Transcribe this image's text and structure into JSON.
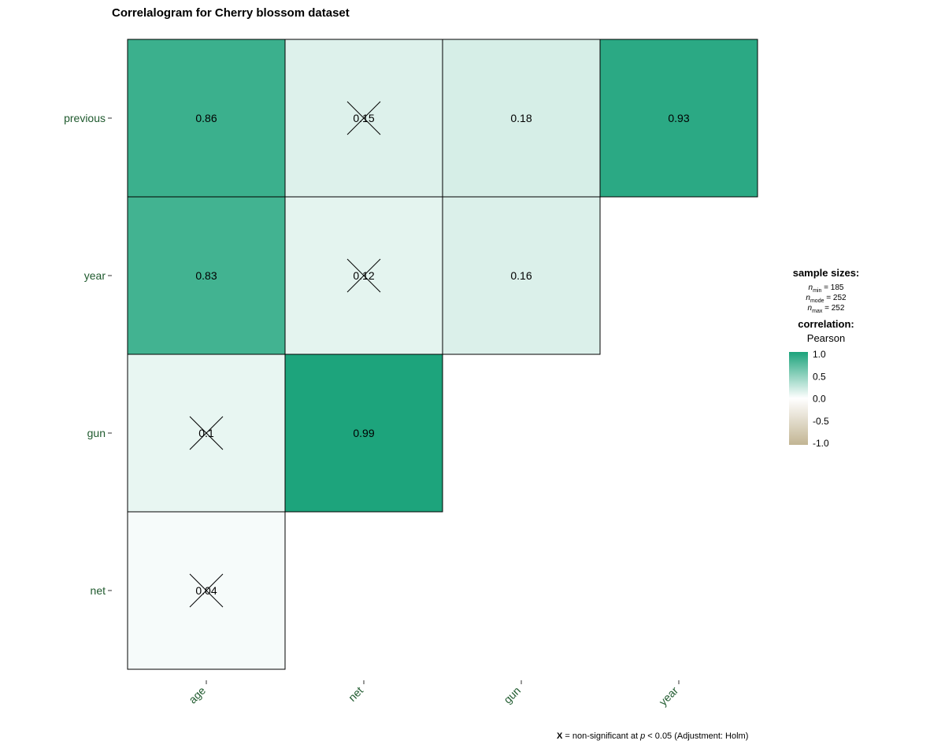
{
  "chart_data": {
    "type": "heatmap",
    "title": "Correlalogram for Cherry blossom dataset",
    "x_categories": [
      "age",
      "net",
      "gun",
      "year"
    ],
    "y_categories": [
      "previous",
      "year",
      "gun",
      "net"
    ],
    "cells": [
      {
        "x": "age",
        "y": "previous",
        "value": 0.86,
        "label": "0.86",
        "nonsignificant": false
      },
      {
        "x": "net",
        "y": "previous",
        "value": 0.15,
        "label": "0.15",
        "nonsignificant": true
      },
      {
        "x": "gun",
        "y": "previous",
        "value": 0.18,
        "label": "0.18",
        "nonsignificant": false
      },
      {
        "x": "year",
        "y": "previous",
        "value": 0.93,
        "label": "0.93",
        "nonsignificant": false
      },
      {
        "x": "age",
        "y": "year",
        "value": 0.83,
        "label": "0.83",
        "nonsignificant": false
      },
      {
        "x": "net",
        "y": "year",
        "value": 0.12,
        "label": "0.12",
        "nonsignificant": true
      },
      {
        "x": "gun",
        "y": "year",
        "value": 0.16,
        "label": "0.16",
        "nonsignificant": false
      },
      {
        "x": "age",
        "y": "gun",
        "value": 0.1,
        "label": "0.1",
        "nonsignificant": true
      },
      {
        "x": "net",
        "y": "gun",
        "value": 0.99,
        "label": "0.99",
        "nonsignificant": false
      },
      {
        "x": "age",
        "y": "net",
        "value": 0.04,
        "label": "0.04",
        "nonsignificant": true
      }
    ],
    "color_scale": {
      "low": "#c2b593",
      "mid": "#ffffff",
      "high": "#1ba37b",
      "min": -1.0,
      "max": 1.0
    },
    "legend": {
      "sample_sizes_title": "sample sizes:",
      "n_min": {
        "symbol": "n",
        "sub": "min",
        "rest": " = 185"
      },
      "n_mode": {
        "symbol": "n",
        "sub": "mode",
        "rest": " = 252"
      },
      "n_max": {
        "symbol": "n",
        "sub": "max",
        "rest": " = 252"
      },
      "correlation_title": "correlation:",
      "method": "Pearson",
      "ticks": [
        "1.0",
        "0.5",
        "0.0",
        "-0.5",
        "-1.0"
      ],
      "placement": "right"
    },
    "caption": {
      "symbol": "X",
      "text1": " = non-significant at ",
      "p": "p",
      "text2": " < 0.05 (Adjustment: Holm)"
    }
  }
}
